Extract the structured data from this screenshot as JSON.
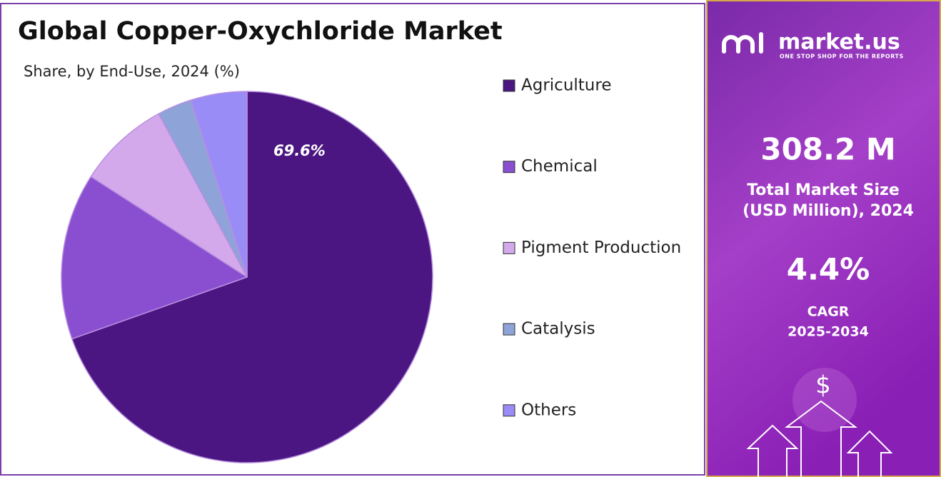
{
  "chart_data": {
    "type": "pie",
    "title": "Global Copper-Oxychloride Market",
    "subtitle": "Share, by End-Use, 2024 (%)",
    "categories": [
      "Agriculture",
      "Chemical",
      "Pigment Production",
      "Catalysis",
      "Others"
    ],
    "values": [
      69.6,
      14.5,
      8.0,
      3.0,
      4.9
    ],
    "value_labels": [
      "69.6%",
      null,
      null,
      null,
      null
    ],
    "colors": [
      "#4b1682",
      "#8a4fd0",
      "#d4a9ec",
      "#8ea3d8",
      "#9a8cf7"
    ],
    "legend": "right"
  },
  "panel": {
    "brand": "market.us",
    "tagline": "ONE STOP SHOP FOR THE REPORTS",
    "market_size": "308.2 M",
    "market_size_caption": [
      "Total Market Size",
      "(USD Million), 2024"
    ],
    "cagr": "4.4%",
    "cagr_caption": [
      "CAGR",
      "2025-2034"
    ],
    "icon": "$"
  }
}
